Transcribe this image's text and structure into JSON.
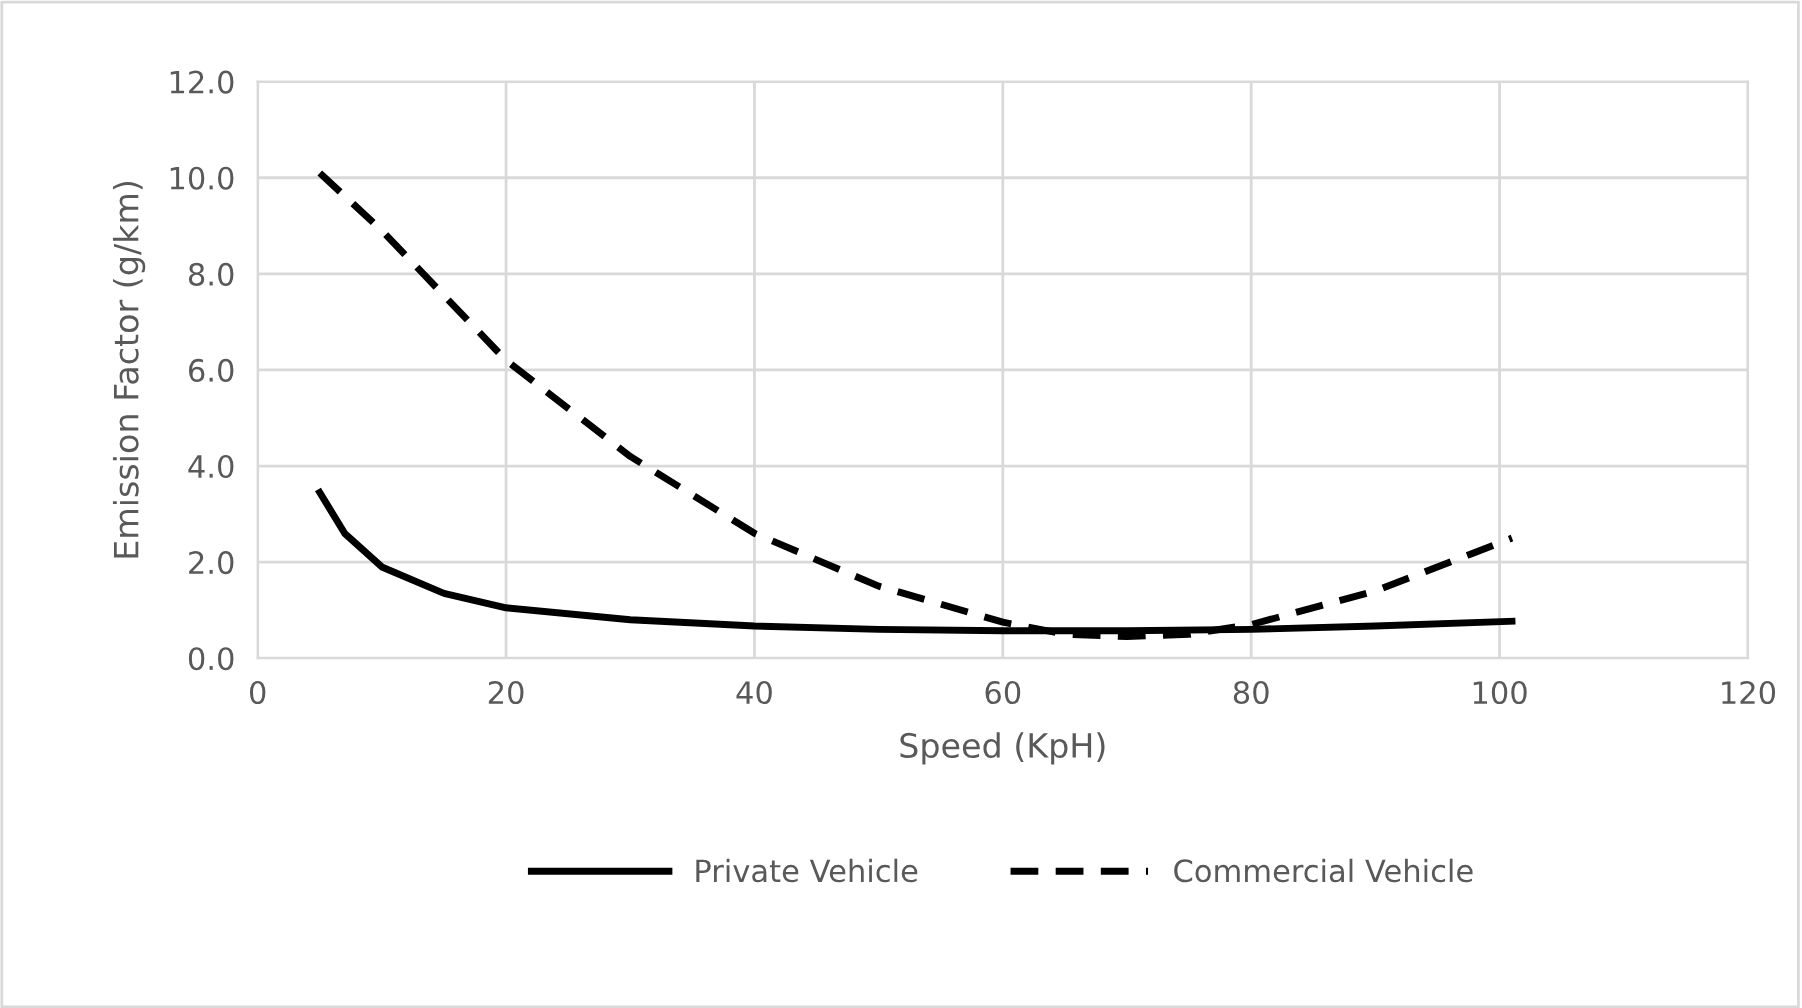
{
  "chart_data": {
    "type": "line",
    "xlabel": "Speed (KpH)",
    "ylabel": "Emission Factor (g/km)",
    "xlim": [
      0,
      120
    ],
    "xticks": [
      0,
      20,
      40,
      60,
      80,
      100,
      120
    ],
    "ylim": [
      0,
      12
    ],
    "yticks": [
      {
        "value": 0,
        "label": "0.0"
      },
      {
        "value": 2,
        "label": "2.0"
      },
      {
        "value": 4,
        "label": "4.0"
      },
      {
        "value": 6,
        "label": "6.0"
      },
      {
        "value": 8,
        "label": "8.0"
      },
      {
        "value": 10,
        "label": "10.0"
      },
      {
        "value": 12,
        "label": "12.0"
      }
    ],
    "grid": true,
    "legend": "bottom",
    "marker": "none",
    "series": [
      {
        "name": "Private Vehicle",
        "color": "#000000",
        "line_style": "solid",
        "x": [
          5,
          7,
          10,
          15,
          20,
          30,
          40,
          50,
          60,
          70,
          80,
          90,
          101
        ],
        "values": [
          3.45,
          2.6,
          1.9,
          1.35,
          1.05,
          0.8,
          0.67,
          0.6,
          0.57,
          0.57,
          0.6,
          0.67,
          0.77
        ]
      },
      {
        "name": "Commercial Vehicle",
        "color": "#000000",
        "line_style": "dashed",
        "x": [
          5,
          10,
          20,
          30,
          40,
          50,
          60,
          65,
          70,
          75,
          80,
          90,
          101
        ],
        "values": [
          10.1,
          8.9,
          6.2,
          4.2,
          2.6,
          1.5,
          0.75,
          0.5,
          0.45,
          0.5,
          0.7,
          1.4,
          2.5
        ]
      }
    ]
  }
}
